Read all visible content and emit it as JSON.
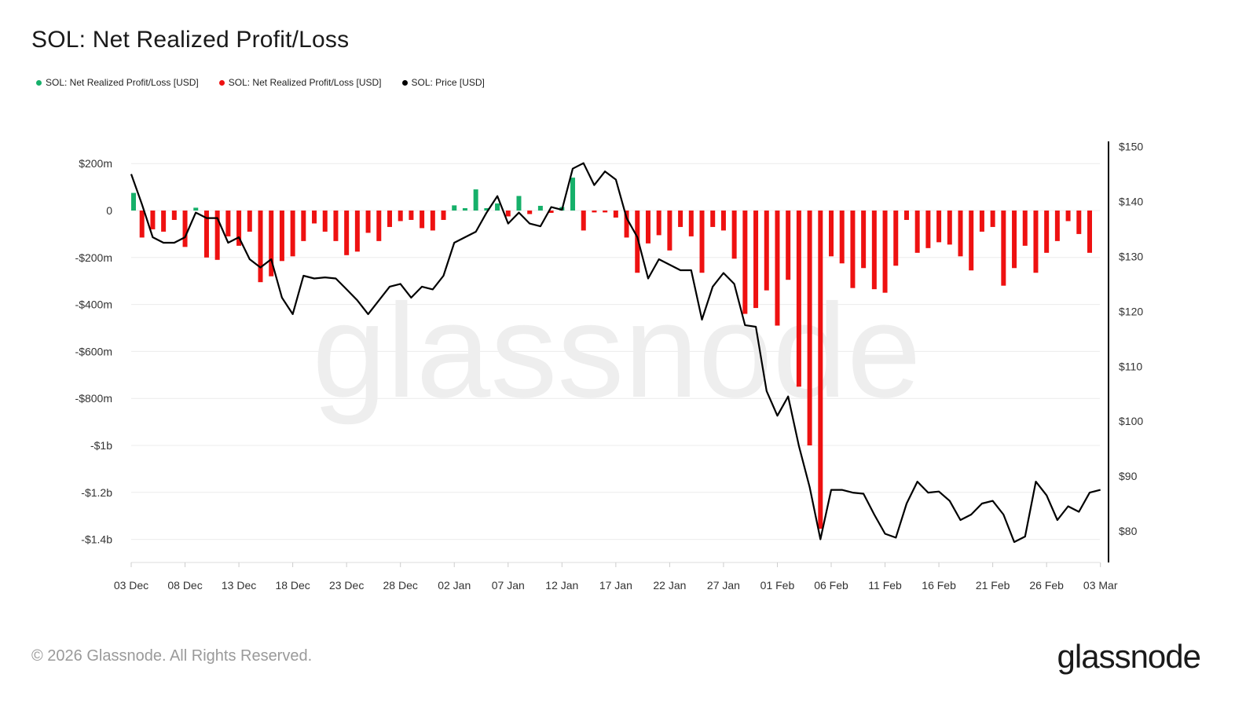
{
  "title": "SOL: Net Realized Profit/Loss",
  "legend": [
    {
      "label": "SOL: Net Realized Profit/Loss [USD]",
      "color": "#16b06a"
    },
    {
      "label": "SOL: Net Realized Profit/Loss [USD]",
      "color": "#ee1111"
    },
    {
      "label": "SOL: Price [USD]",
      "color": "#000000"
    }
  ],
  "watermark": "glassnode",
  "footer": "© 2026 Glassnode. All Rights Reserved.",
  "brand": "glassnode",
  "colors": {
    "profit": "#16b06a",
    "loss": "#ee1111",
    "price": "#000000",
    "grid": "#ececec"
  },
  "chart_data": {
    "type": "bar",
    "title": "SOL: Net Realized Profit/Loss",
    "x_tick_labels": [
      "03 Dec",
      "08 Dec",
      "13 Dec",
      "18 Dec",
      "23 Dec",
      "28 Dec",
      "02 Jan",
      "07 Jan",
      "12 Jan",
      "17 Jan",
      "22 Jan",
      "27 Jan",
      "01 Feb",
      "06 Feb",
      "11 Feb",
      "16 Feb",
      "21 Feb",
      "26 Feb",
      "03 Mar"
    ],
    "y_left": {
      "ticks": [
        200,
        0,
        -200,
        -400,
        -600,
        -800,
        -1000,
        -1200,
        -1400
      ],
      "tick_labels": [
        "$200m",
        "0",
        "-$200m",
        "-$400m",
        "-$600m",
        "-$800m",
        "-$1b",
        "-$1.2b",
        "-$1.4b"
      ],
      "unit": "million USD",
      "range": [
        -1450,
        210
      ]
    },
    "y_right": {
      "ticks": [
        150,
        140,
        130,
        120,
        110,
        100,
        90,
        80
      ],
      "tick_labels": [
        "$150",
        "$140",
        "$130",
        "$120",
        "$110",
        "$100",
        "$90",
        "$80"
      ],
      "unit": "USD",
      "range": [
        73.5,
        151
      ]
    },
    "series": [
      {
        "name": "SOL: Net Realized Profit/Loss [USD]",
        "type": "bar",
        "unit": "million USD",
        "values": [
          75,
          -115,
          -80,
          -90,
          -40,
          -155,
          12,
          -200,
          -210,
          -110,
          -150,
          -90,
          -305,
          -280,
          -215,
          -195,
          -130,
          -55,
          -90,
          -130,
          -190,
          -175,
          -95,
          -130,
          -70,
          -45,
          -40,
          -75,
          -85,
          -40,
          22,
          10,
          90,
          10,
          30,
          -25,
          62,
          -15,
          20,
          -10,
          15,
          140,
          -85,
          -8,
          -8,
          -30,
          -115,
          -265,
          -140,
          -105,
          -170,
          -70,
          -110,
          -265,
          -70,
          -85,
          -205,
          -440,
          -415,
          -340,
          -490,
          -295,
          -750,
          -1000,
          -1355,
          -195,
          -225,
          -330,
          -245,
          -335,
          -350,
          -235,
          -40,
          -180,
          -160,
          -135,
          -145,
          -195,
          -255,
          -90,
          -70,
          -320,
          -245,
          -150,
          -265,
          -180,
          -130,
          -45,
          -100,
          -180
        ]
      },
      {
        "name": "SOL: Price [USD]",
        "type": "line",
        "unit": "USD",
        "values": [
          145,
          139.5,
          133.5,
          132.5,
          132.5,
          133.5,
          138,
          137,
          137,
          132.5,
          133.5,
          129.5,
          128,
          129.5,
          122.5,
          119.5,
          126.5,
          126,
          126.2,
          126,
          124,
          122,
          119.5,
          122,
          124.5,
          125,
          122.5,
          124.5,
          124,
          126.5,
          132.5,
          133.5,
          134.5,
          138,
          141,
          136,
          138,
          136,
          135.5,
          139,
          138.5,
          146,
          147,
          143,
          145.5,
          144,
          137,
          133.5,
          126,
          129.5,
          128.5,
          127.5,
          127.5,
          118.5,
          124.5,
          127,
          125,
          117.5,
          117.2,
          105.5,
          101,
          104.5,
          95.5,
          88,
          78.5,
          87.5,
          87.5,
          87,
          86.8,
          83,
          79.5,
          78.8,
          85,
          89,
          87,
          87.2,
          85.5,
          82,
          83,
          85,
          85.5,
          83,
          78,
          79,
          89,
          86.5,
          82,
          84.5,
          83.5,
          87,
          87.5
        ]
      }
    ],
    "grid": true,
    "legend_position": "top-left"
  }
}
